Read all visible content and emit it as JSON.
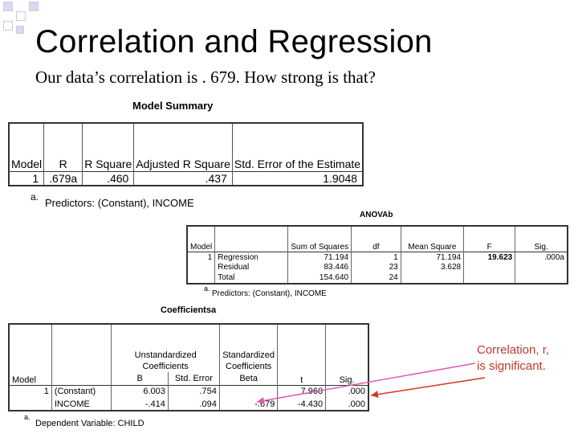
{
  "slide": {
    "title": "Correlation and Regression",
    "subtitle": "Our data’s correlation is . 679.  How strong is that?",
    "note_line1": "Correlation, r,",
    "note_line2": "is significant.",
    "accent_color": "#c0392b",
    "arrow_colors": [
      "#e05ab0",
      "#d2381f"
    ]
  },
  "model_summary": {
    "caption": "Model Summary",
    "headers": [
      "Model",
      "R",
      "R Square",
      "Adjusted R Square",
      "Std. Error of the Estimate"
    ],
    "row": [
      "1",
      ".679a",
      ".460",
      ".437",
      "1.9048"
    ],
    "footnote_mark": "a.",
    "footnote": "Predictors: (Constant), INCOME"
  },
  "anova": {
    "caption": "ANOVAb",
    "headers": [
      "Model",
      "",
      "Sum of Squares",
      "df",
      "Mean Square",
      "F",
      "Sig."
    ],
    "rows": [
      [
        "1",
        "Regression",
        "71.194",
        "1",
        "71.194",
        "19.623",
        ".000a"
      ],
      [
        "",
        "Residual",
        "83.446",
        "23",
        "3.628",
        "",
        ""
      ],
      [
        "",
        "Total",
        "154.640",
        "24",
        "",
        "",
        ""
      ]
    ],
    "footnote_mark": "a.",
    "footnote": "Predictors: (Constant), INCOME"
  },
  "coefficients": {
    "caption": "Coefficientsa",
    "group_unstd": "Unstandardized Coefficients",
    "group_std": "Standardized Coefficients",
    "headers": [
      "Model",
      "",
      "B",
      "Std. Error",
      "Beta",
      "t",
      "Sig."
    ],
    "rows": [
      [
        "1",
        "(Constant)",
        "6.003",
        ".754",
        "",
        "7.960",
        ".000"
      ],
      [
        "",
        "INCOME",
        "-.414",
        ".094",
        "-.679",
        "-4.430",
        ".000"
      ]
    ],
    "footnote_mark": "a.",
    "footnote": "Dependent Variable: CHILD"
  }
}
